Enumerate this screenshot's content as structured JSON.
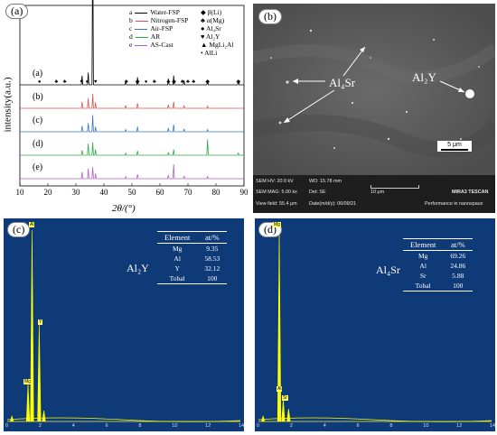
{
  "panel_a": {
    "label": "(a)",
    "ylabel": "intensity(a.u.)",
    "xlabel": "2θ/(°)",
    "curve_letters": [
      "(a)",
      "(b)",
      "(c)",
      "(d)",
      "(e)"
    ],
    "legend": [
      {
        "key": "a",
        "name": "Water-FSP",
        "color": "#000000"
      },
      {
        "key": "b",
        "name": "Nitrogen-FSP",
        "color": "#d9534f"
      },
      {
        "key": "c",
        "name": "Air-FSP",
        "color": "#3a74c9"
      },
      {
        "key": "d",
        "name": "AR",
        "color": "#2faa45"
      },
      {
        "key": "e",
        "name": "AS-Cast",
        "color": "#b35fc7"
      }
    ],
    "phase_legend": [
      {
        "symbol": "◆",
        "name": "β(Li)"
      },
      {
        "symbol": "♣",
        "name": "α(Mg)"
      },
      {
        "symbol": "●",
        "name": "Al₄Sr"
      },
      {
        "symbol": "♥",
        "name": "Al₂Y"
      },
      {
        "symbol": "▲",
        "name": "MgLi₂Al"
      },
      {
        "symbol": "•",
        "name": "AlLi"
      }
    ]
  },
  "chart_data": {
    "type": "line",
    "xlabel": "2θ/(°)",
    "ylabel": "intensity(a.u.)",
    "xlim": [
      10,
      90
    ],
    "x_ticks": [
      10,
      20,
      30,
      40,
      50,
      60,
      70,
      80,
      90
    ],
    "series": [
      {
        "name": "Water-FSP",
        "peaks": [
          [
            32.2,
            0.06
          ],
          [
            34.4,
            0.08
          ],
          [
            36.0,
            1.0
          ],
          [
            47.8,
            0.03
          ],
          [
            52.0,
            0.05
          ],
          [
            63.0,
            0.04
          ],
          [
            64.9,
            0.06
          ],
          [
            68.6,
            0.03
          ],
          [
            77.0,
            0.03
          ],
          [
            88.0,
            0.03
          ]
        ]
      },
      {
        "name": "Nitrogen-FSP",
        "peaks": [
          [
            32.2,
            0.09
          ],
          [
            34.4,
            0.14
          ],
          [
            36.0,
            0.2
          ],
          [
            37.0,
            0.08
          ],
          [
            47.8,
            0.04
          ],
          [
            52.0,
            0.07
          ],
          [
            63.0,
            0.05
          ],
          [
            64.9,
            0.09
          ],
          [
            68.6,
            0.04
          ],
          [
            77.0,
            0.03
          ]
        ]
      },
      {
        "name": "Air-FSP",
        "peaks": [
          [
            32.2,
            0.08
          ],
          [
            34.4,
            0.12
          ],
          [
            36.0,
            0.23
          ],
          [
            37.0,
            0.07
          ],
          [
            47.8,
            0.03
          ],
          [
            52.0,
            0.07
          ],
          [
            63.0,
            0.05
          ],
          [
            64.9,
            0.1
          ],
          [
            68.6,
            0.04
          ],
          [
            77.0,
            0.03
          ]
        ]
      },
      {
        "name": "AR",
        "peaks": [
          [
            32.2,
            0.07
          ],
          [
            34.4,
            0.16
          ],
          [
            36.0,
            0.18
          ],
          [
            37.0,
            0.08
          ],
          [
            47.8,
            0.03
          ],
          [
            52.0,
            0.06
          ],
          [
            63.0,
            0.04
          ],
          [
            64.9,
            0.08
          ],
          [
            77.0,
            0.22
          ],
          [
            88.0,
            0.03
          ]
        ]
      },
      {
        "name": "AS-Cast",
        "peaks": [
          [
            32.2,
            0.09
          ],
          [
            34.4,
            0.14
          ],
          [
            36.0,
            0.16
          ],
          [
            37.0,
            0.07
          ],
          [
            47.8,
            0.03
          ],
          [
            52.0,
            0.06
          ],
          [
            63.0,
            0.05
          ],
          [
            64.9,
            0.2
          ],
          [
            68.6,
            0.04
          ],
          [
            77.0,
            0.03
          ]
        ]
      }
    ]
  },
  "panel_b": {
    "label": "(b)",
    "annot_al4sr": "Al₄Sr",
    "annot_al2y": "Al₂Y",
    "scale_label": "5 μm",
    "info": {
      "hv": "SEM HV: 20.0 kV",
      "wd": "WD: 15.78 mm",
      "mag": "SEM MAG: 5.00 kx",
      "det": "Det: SE",
      "scale": "10 μm",
      "brand": "MIRA3 TESCAN",
      "field": "View field: 55.4 μm",
      "date": "Date(m/d/y): 06/09/21",
      "perf": "Performance in nanospace"
    }
  },
  "panel_c": {
    "label": "(c)",
    "phase": "Al₂Y",
    "table_head": [
      "Element",
      "at/%"
    ],
    "rows": [
      [
        "Mg",
        "9.35"
      ],
      [
        "Al",
        "58.53"
      ],
      [
        "Y",
        "32.12"
      ],
      [
        "Tobal",
        "100"
      ]
    ],
    "peak_labels": [
      "Al",
      "Mg",
      "Y"
    ],
    "x_ticks": [
      "0",
      "2",
      "4",
      "6",
      "8",
      "10",
      "12",
      "14"
    ]
  },
  "panel_d": {
    "label": "(d)",
    "phase": "Al₄Sr",
    "table_head": [
      "Element",
      "at/%"
    ],
    "rows": [
      [
        "Mg",
        "69.26"
      ],
      [
        "Al",
        "24.86"
      ],
      [
        "Sr",
        "5.88"
      ],
      [
        "Tobal",
        "100"
      ]
    ],
    "peak_labels": [
      "Mg",
      "Al",
      "Sr"
    ],
    "x_ticks": [
      "0",
      "2",
      "4",
      "6",
      "8",
      "10",
      "12",
      "14"
    ]
  }
}
